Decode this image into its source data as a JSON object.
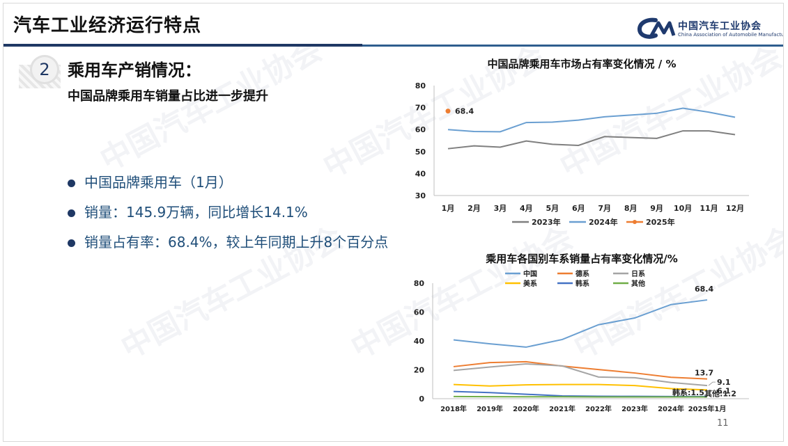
{
  "header": {
    "title": "汽车工业经济运行特点",
    "logo_cn": "中国汽车工业协会",
    "logo_en": "China Association of Automobile Manufacturers"
  },
  "section": {
    "number": "2",
    "title": "乘用车产销情况：",
    "subtitle": "中国品牌乘用车销量占比进一步提升"
  },
  "bullets": [
    "中国品牌乘用车（1月）",
    "销量：145.9万辆，同比增长14.1%",
    "销量占有率：68.4%，较上年同期上升8个百分点"
  ],
  "page_number": "11",
  "chart_data": [
    {
      "type": "line",
      "title": "中国品牌乘用车市场占有率变化情况 / %",
      "categories": [
        "1月",
        "2月",
        "3月",
        "4月",
        "5月",
        "6月",
        "7月",
        "8月",
        "9月",
        "10月",
        "11月",
        "12月"
      ],
      "ylim": [
        30,
        80
      ],
      "yticks": [
        30,
        40,
        50,
        60,
        70,
        80
      ],
      "legend_position": "bottom",
      "series": [
        {
          "name": "2023年",
          "color": "#7f7f7f",
          "values": [
            51.3,
            52.6,
            52.0,
            54.8,
            53.3,
            52.8,
            56.8,
            56.4,
            56.0,
            59.4,
            59.4,
            57.7
          ]
        },
        {
          "name": "2024年",
          "color": "#6a9fd1",
          "values": [
            60.0,
            59.1,
            59.0,
            63.2,
            63.4,
            64.3,
            65.8,
            66.6,
            67.4,
            69.7,
            67.9,
            65.6
          ]
        },
        {
          "name": "2025年",
          "color": "#ed7d31",
          "values": [
            68.4,
            null,
            null,
            null,
            null,
            null,
            null,
            null,
            null,
            null,
            null,
            null
          ]
        }
      ],
      "annotations": [
        {
          "text": "68.4",
          "category": "1月",
          "value": 68.4
        }
      ]
    },
    {
      "type": "line",
      "title": "乘用车各国别车系销量占有率变化情况/%",
      "categories": [
        "2018年",
        "2019年",
        "2020年",
        "2021年",
        "2022年",
        "2023年",
        "2024年",
        "2025年1月"
      ],
      "ylim": [
        0,
        80
      ],
      "yticks": [
        0,
        20,
        40,
        60,
        80
      ],
      "legend_position": "top",
      "series": [
        {
          "name": "中国",
          "color": "#6a9fd1",
          "values": [
            40.7,
            38.0,
            35.7,
            41.0,
            51.2,
            55.9,
            65.2,
            68.4
          ]
        },
        {
          "name": "德系",
          "color": "#ed7d31",
          "values": [
            22.2,
            25.0,
            25.6,
            22.6,
            20.2,
            17.8,
            14.8,
            13.7
          ]
        },
        {
          "name": "日系",
          "color": "#a5a5a5",
          "values": [
            19.6,
            21.9,
            24.1,
            22.7,
            15.0,
            14.5,
            11.2,
            9.1
          ]
        },
        {
          "name": "美系",
          "color": "#ffc000",
          "values": [
            9.8,
            8.8,
            9.6,
            9.8,
            9.8,
            9.1,
            7.0,
            6.1
          ]
        },
        {
          "name": "韩系",
          "color": "#4472c4",
          "values": [
            5.0,
            4.2,
            3.1,
            1.9,
            1.7,
            1.6,
            1.5,
            1.5
          ]
        },
        {
          "name": "其他",
          "color": "#70ad47",
          "values": [
            1.5,
            1.4,
            1.3,
            1.3,
            1.2,
            1.2,
            1.2,
            1.2
          ]
        }
      ],
      "end_labels": [
        "68.4",
        "13.7",
        "9.1",
        "6.1",
        "韩系:1.5",
        "其他:1.2"
      ]
    }
  ]
}
